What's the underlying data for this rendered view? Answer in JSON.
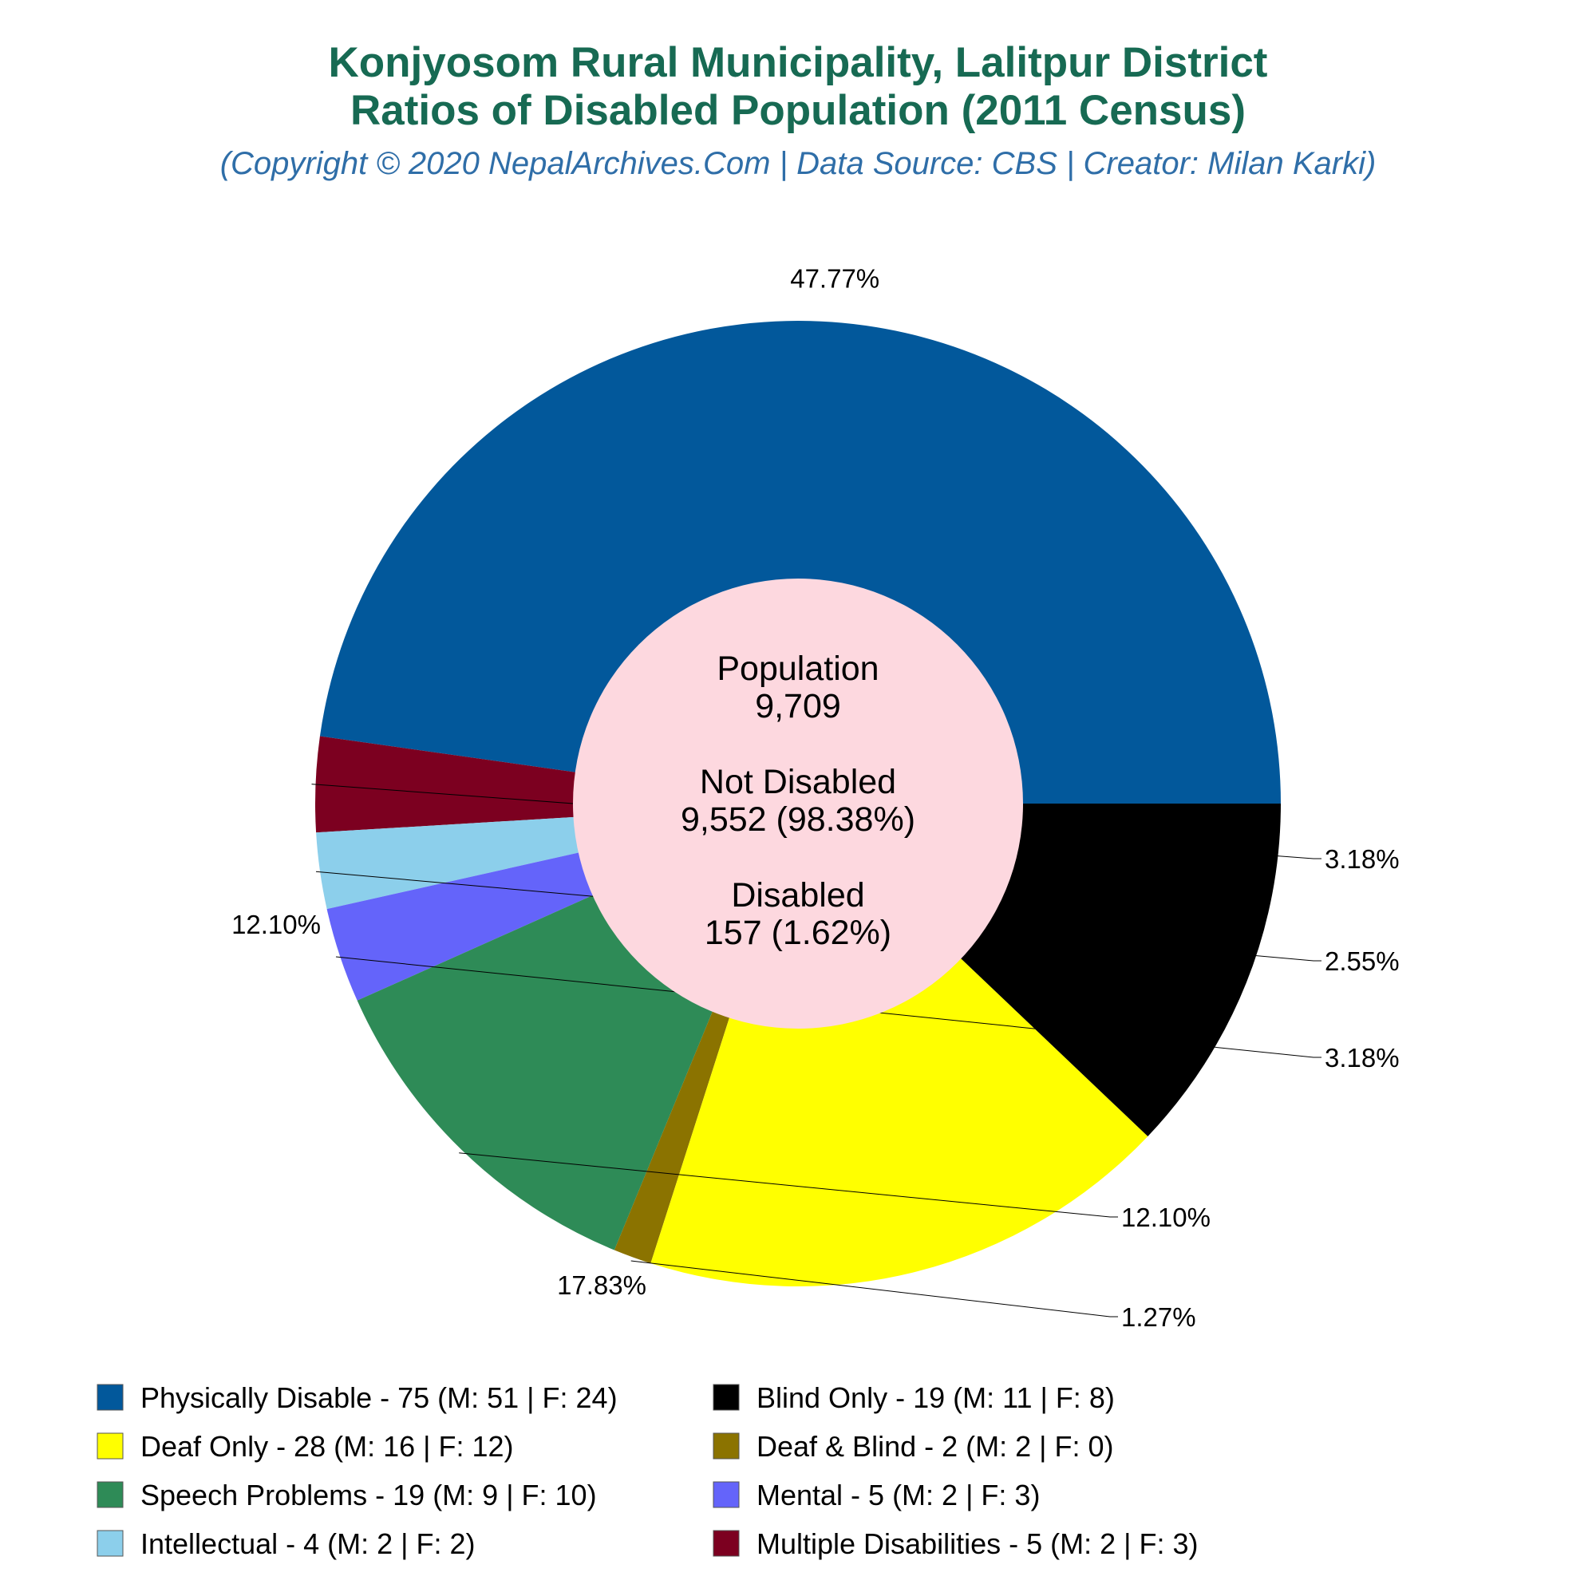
{
  "chart_data": {
    "type": "pie",
    "title": "Konjyosom Rural Municipality, Lalitpur District",
    "title_line2": "Ratios of Disabled Population (2011 Census)",
    "subtitle": "(Copyright © 2020 NepalArchives.Com | Data Source: CBS | Creator: Milan Karki)",
    "center": {
      "population_label": "Population",
      "population_value": "9,709",
      "not_disabled_label": "Not Disabled",
      "not_disabled_value": "9,552 (98.38%)",
      "disabled_label": "Disabled",
      "disabled_value": "157 (1.62%)"
    },
    "center_color": "#fdd8df",
    "slices": [
      {
        "legend": "Physically Disable - 75 (M: 51 | F: 24)",
        "value": 75,
        "percent_label": "47.77%",
        "color": "#02589b"
      },
      {
        "legend": "Multiple Disabilities - 5 (M: 2 | F: 3)",
        "value": 5,
        "percent_label": "3.18%",
        "color": "#7c0020"
      },
      {
        "legend": "Intellectual - 4 (M: 2 | F: 2)",
        "value": 4,
        "percent_label": "2.55%",
        "color": "#8ccfeb"
      },
      {
        "legend": "Mental - 5 (M: 2 | F: 3)",
        "value": 5,
        "percent_label": "3.18%",
        "color": "#6464fa"
      },
      {
        "legend": "Speech Problems - 19 (M: 9 | F: 10)",
        "value": 19,
        "percent_label": "12.10%",
        "color": "#2e8b57"
      },
      {
        "legend": "Deaf & Blind - 2 (M: 2 | F: 0)",
        "value": 2,
        "percent_label": "1.27%",
        "color": "#8b7300"
      },
      {
        "legend": "Deaf Only - 28 (M: 16 | F: 12)",
        "value": 28,
        "percent_label": "17.83%",
        "color": "#ffff00"
      },
      {
        "legend": "Blind Only - 19 (M: 11 | F: 8)",
        "value": 19,
        "percent_label": "12.10%",
        "color": "#000000"
      }
    ],
    "legend_order": [
      "Physically Disable - 75 (M: 51 | F: 24)",
      "Blind Only - 19 (M: 11 | F: 8)",
      "Deaf Only - 28 (M: 16 | F: 12)",
      "Deaf & Blind - 2 (M: 2 | F: 0)",
      "Speech Problems - 19 (M: 9 | F: 10)",
      "Mental - 5 (M: 2 | F: 3)",
      "Intellectual - 4 (M: 2 | F: 2)",
      "Multiple Disabilities - 5 (M: 2 | F: 3)"
    ],
    "legend_placement": "bottom"
  }
}
